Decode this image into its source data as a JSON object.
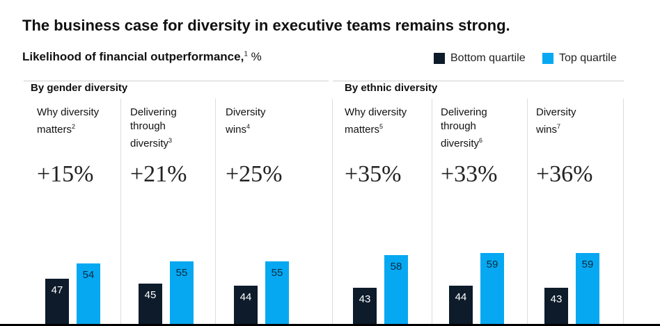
{
  "title": "The business case for diversity in executive teams remains strong.",
  "subtitle": {
    "text": "Likelihood of financial outperformance,",
    "footnote": "1",
    "unit": "%"
  },
  "legend": [
    {
      "label": "Bottom quartile",
      "color": "#0d1b2a"
    },
    {
      "label": "Top quartile",
      "color": "#06a8f2"
    }
  ],
  "chart_data": {
    "type": "bar",
    "series_colors": {
      "bottom": "#0d1b2a",
      "top": "#06a8f2"
    },
    "groups": [
      {
        "title": "By gender diversity",
        "studies": [
          {
            "label": [
              "Why diversity",
              "matters"
            ],
            "footnote": "2",
            "uplift": "+15%",
            "bottom": 47,
            "top": 54
          },
          {
            "label": [
              "Delivering",
              "through",
              "diversity"
            ],
            "footnote": "3",
            "uplift": "+21%",
            "bottom": 45,
            "top": 55
          },
          {
            "label": [
              "Diversity",
              "wins"
            ],
            "footnote": "4",
            "uplift": "+25%",
            "bottom": 44,
            "top": 55
          }
        ]
      },
      {
        "title": "By ethnic diversity",
        "studies": [
          {
            "label": [
              "Why diversity",
              "matters"
            ],
            "footnote": "5",
            "uplift": "+35%",
            "bottom": 43,
            "top": 58
          },
          {
            "label": [
              "Delivering",
              "through",
              "diversity"
            ],
            "footnote": "6",
            "uplift": "+33%",
            "bottom": 44,
            "top": 59
          },
          {
            "label": [
              "Diversity",
              "wins"
            ],
            "footnote": "7",
            "uplift": "+36%",
            "bottom": 43,
            "top": 59
          }
        ]
      }
    ]
  }
}
